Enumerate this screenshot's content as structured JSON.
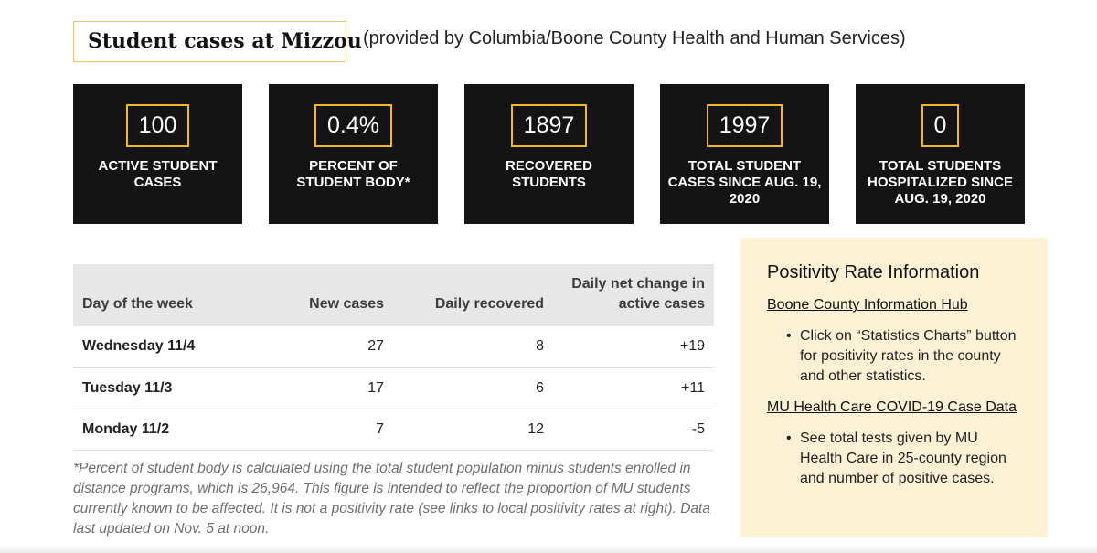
{
  "header": {
    "title": "Student cases at Mizzou",
    "subtitle": "(provided by Columbia/Boone County Health and Human Services)"
  },
  "stats": [
    {
      "value": "100",
      "label": "ACTIVE STUDENT CASES"
    },
    {
      "value": "0.4%",
      "label": "PERCENT OF STUDENT BODY*"
    },
    {
      "value": "1897",
      "label": "RECOVERED STUDENTS"
    },
    {
      "value": "1997",
      "label": "TOTAL STUDENT CASES SINCE AUG. 19, 2020"
    },
    {
      "value": "0",
      "label": "TOTAL STUDENTS HOSPITALIZED SINCE AUG. 19, 2020"
    }
  ],
  "table": {
    "headers": [
      "Day of the week",
      "New cases",
      "Daily recovered",
      "Daily net change in active cases"
    ],
    "rows": [
      [
        "Wednesday 11/4",
        "27",
        "8",
        "+19"
      ],
      [
        "Tuesday 11/3",
        "17",
        "6",
        "+11"
      ],
      [
        "Monday 11/2",
        "7",
        "12",
        "-5"
      ]
    ]
  },
  "footnote": "*Percent of student body is calculated using the total student population minus students enrolled in distance programs, which is 26,964. This figure is intended to reflect the proportion of MU students currently known to be affected. It is not a positivity rate (see links to local positivity rates at right). Data last updated on Nov. 5 at noon.",
  "positivity": {
    "title": "Positivity Rate Information",
    "sections": [
      {
        "link": "Boone County Information Hub",
        "bullet": "Click on “Statistics Charts” button for positivity rates in the county and other statistics."
      },
      {
        "link": "MU Health Care COVID-19 Case Data",
        "bullet": "See total tests given by MU Health Care in 25-county region and number of positive cases."
      }
    ]
  },
  "colors": {
    "card_bg": "#141414",
    "accent_gold": "#f1b82d",
    "title_border": "#e2c27c",
    "panel_bg": "#fdf1d5",
    "table_header_bg": "#e7e7e7"
  }
}
